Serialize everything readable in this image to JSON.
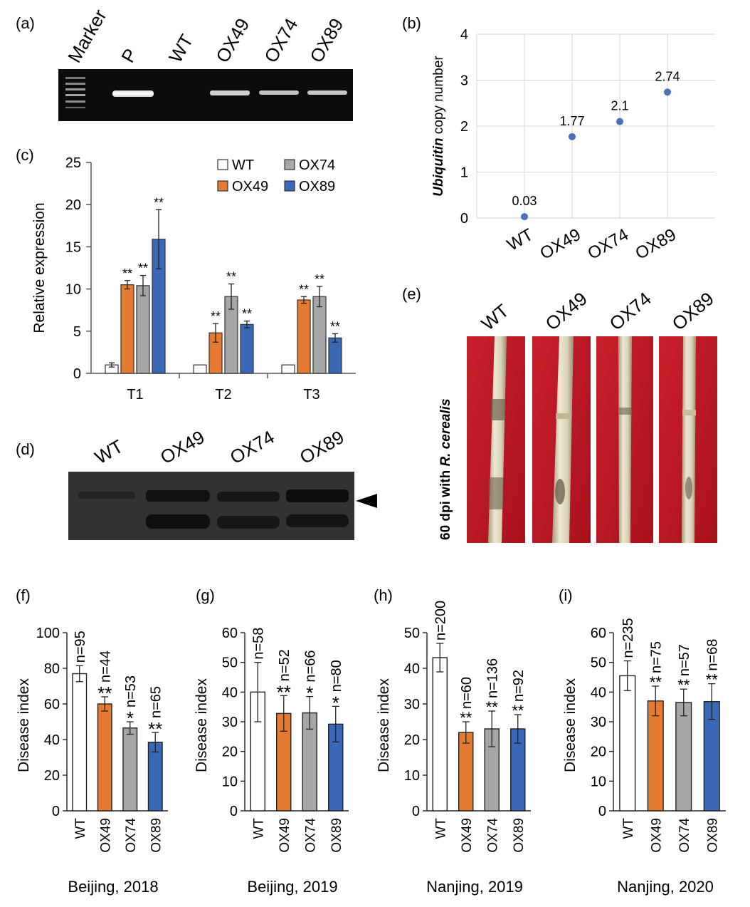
{
  "panel_labels": {
    "a": "(a)",
    "b": "(b)",
    "c": "(c)",
    "d": "(d)",
    "e": "(e)",
    "f": "(f)",
    "g": "(g)",
    "h": "(h)",
    "i": "(i)"
  },
  "gel_a": {
    "lanes": [
      "Marker",
      "P",
      "WT",
      "OX49",
      "OX74",
      "OX89"
    ]
  },
  "western_d": {
    "lanes": [
      "WT",
      "OX49",
      "OX74",
      "OX89"
    ]
  },
  "photo_e": {
    "lanes": [
      "WT",
      "OX49",
      "OX74",
      "OX89"
    ],
    "side_label_prefix": "60 dpi with ",
    "side_label_italic": "R. cerealis"
  },
  "colors": {
    "WT": "#ffffff",
    "OX49": "#e57a31",
    "OX74": "#a6a6a6",
    "OX89": "#3b68b6",
    "point": "#4a72b8"
  },
  "chart_data": [
    {
      "id": "b",
      "type": "scatter",
      "ylabel_italic": "Ubiquitin",
      "ylabel_rest": " copy number",
      "categories": [
        "WT",
        "OX49",
        "OX74",
        "OX89"
      ],
      "values": [
        0.03,
        1.77,
        2.1,
        2.74
      ],
      "data_labels": [
        "0.03",
        "1.77",
        "2.1",
        "2.74"
      ],
      "ylim": [
        0,
        4
      ],
      "yticks": [
        "0",
        "1",
        "2",
        "3",
        "4"
      ],
      "grid": true
    },
    {
      "id": "c",
      "type": "bar",
      "ylabel": "Relative expression",
      "categories": [
        "T1",
        "T2",
        "T3"
      ],
      "ylim": [
        0,
        25
      ],
      "yticks": [
        "0",
        "5",
        "10",
        "15",
        "20",
        "25"
      ],
      "legend": [
        "WT",
        "OX74",
        "OX49",
        "OX89"
      ],
      "legend_position": "top-right",
      "series": [
        {
          "name": "WT",
          "values": [
            1.0,
            1.0,
            1.0
          ],
          "errors": [
            0.25,
            0.0,
            0.0
          ],
          "sig": [
            "",
            "",
            ""
          ]
        },
        {
          "name": "OX49",
          "values": [
            10.5,
            4.8,
            8.7
          ],
          "errors": [
            0.5,
            1.1,
            0.4
          ],
          "sig": [
            "**",
            "**",
            "**"
          ]
        },
        {
          "name": "OX74",
          "values": [
            10.4,
            9.1,
            9.1
          ],
          "errors": [
            1.2,
            1.5,
            1.2
          ],
          "sig": [
            "**",
            "**",
            "**"
          ]
        },
        {
          "name": "OX89",
          "values": [
            15.9,
            5.8,
            4.2
          ],
          "errors": [
            3.5,
            0.4,
            0.5
          ],
          "sig": [
            "**",
            "**",
            "**"
          ]
        }
      ]
    },
    {
      "id": "f",
      "type": "bar",
      "ylabel": "Disease index",
      "caption": "Beijing, 2018",
      "categories": [
        "WT",
        "OX49",
        "OX74",
        "OX89"
      ],
      "values": [
        77,
        60,
        46.5,
        38.5
      ],
      "errors": [
        4.5,
        4,
        3.5,
        5.5
      ],
      "sig": [
        "",
        "**",
        "*",
        "**"
      ],
      "n_labels": [
        "n=95",
        "n=44",
        "n=53",
        "n=65"
      ],
      "ylim": [
        0,
        100
      ],
      "yticks": [
        "0",
        "20",
        "40",
        "60",
        "80",
        "100"
      ]
    },
    {
      "id": "g",
      "type": "bar",
      "ylabel": "Disease index",
      "caption": "Beijing, 2019",
      "categories": [
        "WT",
        "OX49",
        "OX74",
        "OX89"
      ],
      "values": [
        40,
        32.8,
        33,
        29.2
      ],
      "errors": [
        10,
        6,
        5.5,
        6
      ],
      "sig": [
        "",
        "**",
        "*",
        "*"
      ],
      "n_labels": [
        "n=58",
        "n=52",
        "n=66",
        "n=80"
      ],
      "ylim": [
        0,
        60
      ],
      "yticks": [
        "0",
        "10",
        "20",
        "30",
        "40",
        "50",
        "60"
      ]
    },
    {
      "id": "h",
      "type": "bar",
      "ylabel": "Disease index",
      "caption": "Nanjing, 2019",
      "categories": [
        "WT",
        "OX49",
        "OX74",
        "OX89"
      ],
      "values": [
        43,
        22,
        23,
        23
      ],
      "errors": [
        4,
        3,
        5,
        4
      ],
      "sig": [
        "",
        "**",
        "**",
        "**"
      ],
      "n_labels": [
        "n=200",
        "n=60",
        "n=136",
        "n=92"
      ],
      "ylim": [
        0,
        50
      ],
      "yticks": [
        "0",
        "10",
        "20",
        "30",
        "40",
        "50"
      ]
    },
    {
      "id": "i",
      "type": "bar",
      "ylabel": "Disease index",
      "caption": "Nanjing, 2020",
      "categories": [
        "WT",
        "OX49",
        "OX74",
        "OX89"
      ],
      "values": [
        45.5,
        37,
        36.5,
        36.8
      ],
      "errors": [
        5,
        5,
        4.5,
        6
      ],
      "sig": [
        "",
        "**",
        "**",
        "**"
      ],
      "n_labels": [
        "n=235",
        "n=75",
        "n=57",
        "n=68"
      ],
      "ylim": [
        0,
        60
      ],
      "yticks": [
        "0",
        "10",
        "20",
        "30",
        "40",
        "50",
        "60"
      ]
    }
  ]
}
